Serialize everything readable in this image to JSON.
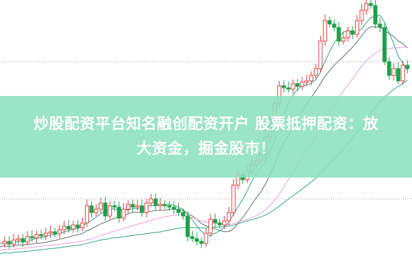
{
  "headline": {
    "line1": "炒股配资平台知名融创配资开户 股票抵押配资：放",
    "line2": "大资金，掘金股市！"
  },
  "colors": {
    "banner": "#8ce0c0",
    "candle_up": "#e03c3c",
    "candle_down": "#1fa04a",
    "ma_pink": "#e99bd8",
    "ma_teal": "#2aa58a",
    "ma_dark": "#5a6f68",
    "grid": "#9a9a9a"
  }
}
